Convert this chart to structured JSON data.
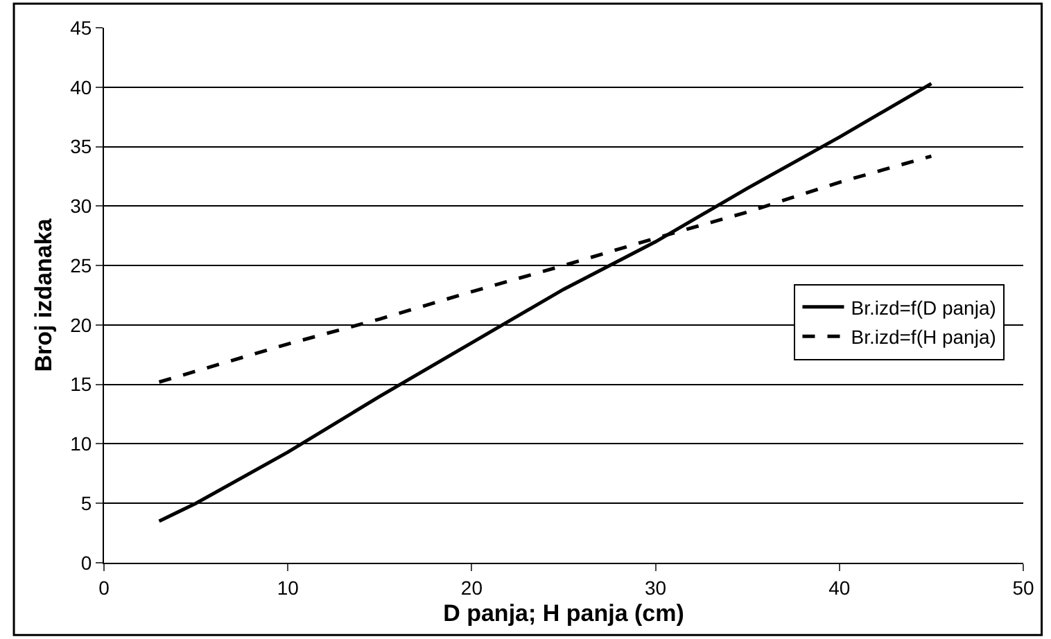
{
  "chart_data": {
    "type": "line",
    "xlabel": "D panja; H panja (cm)",
    "ylabel": "Broj izdanaka",
    "xlim": [
      0,
      50
    ],
    "xticks": [
      0,
      10,
      20,
      30,
      40,
      50
    ],
    "ylim": [
      0,
      45
    ],
    "yticks": [
      0,
      5,
      10,
      15,
      20,
      25,
      30,
      35,
      40,
      45
    ],
    "grid": "y",
    "legend": "right",
    "marker": "none",
    "series": [
      {
        "name": "Br.izd=f(D panja)",
        "color": "#000000",
        "line_style": "solid",
        "x": [
          3,
          5,
          10,
          15,
          20,
          25,
          30,
          35,
          40,
          45
        ],
        "values": [
          3.5,
          5,
          9.3,
          14,
          18.5,
          23,
          27,
          31.5,
          35.8,
          40.3
        ]
      },
      {
        "name": "Br.izd=f(H panja)",
        "color": "#000000",
        "line_style": "dashed",
        "x": [
          3,
          10,
          15,
          20,
          25,
          30,
          35,
          40,
          45
        ],
        "values": [
          15.2,
          18.4,
          20.5,
          22.8,
          25,
          27.3,
          29.5,
          32,
          34.2
        ]
      }
    ]
  }
}
